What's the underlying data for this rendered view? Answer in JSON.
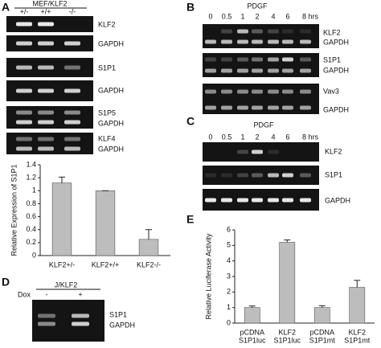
{
  "panels": {
    "A": {
      "label": "A",
      "header": "MEF/KLF2",
      "lanes": [
        "+/-",
        "+/+",
        "-/-"
      ],
      "gel_labels": [
        "KLF2",
        "GAPDH",
        "S1P1",
        "GAPDH",
        "S1P5",
        "GAPDH",
        "KLF4",
        "GAPDH"
      ]
    },
    "B": {
      "label": "B",
      "treatment": "PDGF",
      "lanes": [
        "0",
        "0.5",
        "1",
        "2",
        "4",
        "6",
        "8 hrs"
      ],
      "gel_labels": [
        "KLF2",
        "GAPDH",
        "S1P1",
        "GAPDH",
        "Vav3",
        "GAPDH"
      ]
    },
    "C": {
      "label": "C",
      "treatment": "PDGF",
      "lanes": [
        "0",
        "0.5",
        "1",
        "2",
        "4",
        "6",
        "8 hrs"
      ],
      "gel_labels": [
        "KLF2",
        "S1P1",
        "GAPDH"
      ]
    },
    "D": {
      "label": "D",
      "header": "J/KLF2",
      "row_label": "Dox",
      "lanes": [
        "-",
        "+"
      ],
      "gel_labels": [
        "S1P1",
        "GAPDH"
      ]
    },
    "E": {
      "label": "E"
    }
  },
  "chart_data": [
    {
      "type": "bar",
      "y_label": "Relative Expression of S1P1",
      "categories": [
        [
          "KLF2+/-"
        ],
        [
          "KLF2+/+"
        ],
        [
          "KLF2-/-"
        ]
      ],
      "values": [
        1.12,
        1.0,
        0.25
      ],
      "errors": [
        0.09,
        0,
        0.15
      ],
      "color": "#bdbdbd",
      "ylim": [
        0,
        1.4
      ],
      "yticks": [
        0,
        0.2,
        0.4,
        0.6,
        0.8,
        1,
        1.2,
        1.4
      ]
    },
    {
      "type": "bar",
      "y_label": "Relative Luciferase Activity",
      "categories": [
        [
          "pCDNA",
          "S1P1luc"
        ],
        [
          "KLF2",
          "S1P1luc"
        ],
        [
          "pCDNA",
          "S1P1mt"
        ],
        [
          "KLF2",
          "S1P1mt"
        ]
      ],
      "values": [
        1.0,
        5.2,
        1.0,
        2.3
      ],
      "errors": [
        0.1,
        0.15,
        0.12,
        0.45
      ],
      "color": "#bdbdbd",
      "ylim": [
        0,
        6
      ],
      "yticks": [
        0,
        1,
        2,
        3,
        4,
        5,
        6
      ]
    }
  ]
}
